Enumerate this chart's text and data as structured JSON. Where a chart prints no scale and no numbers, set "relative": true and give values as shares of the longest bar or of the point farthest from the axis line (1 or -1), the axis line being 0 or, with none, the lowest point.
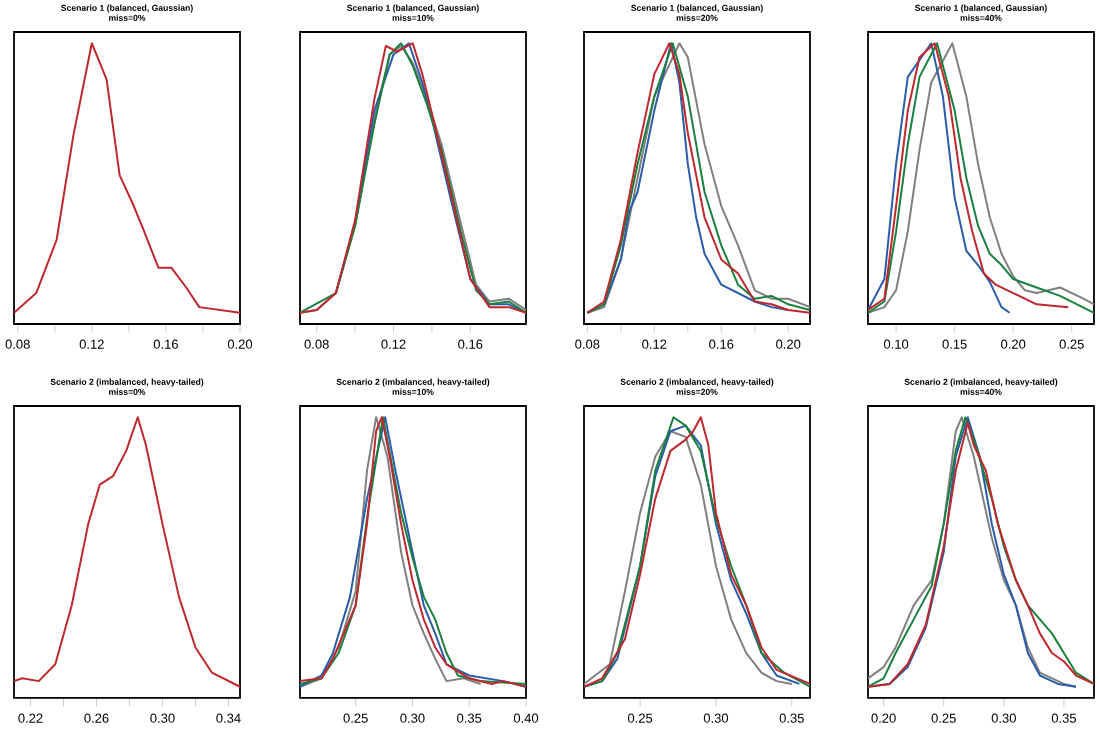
{
  "chart_data": [
    {
      "type": "line",
      "title": "Scenario 1 (balanced, Gaussian)",
      "subtitle": "miss=0%",
      "relative": true,
      "tick_labels": "x",
      "xlim": [
        0.078,
        0.2
      ],
      "xticks": [
        0.08,
        {
          "value": 0.1,
          "label": null
        },
        0.12,
        {
          "value": 0.14,
          "label": null
        },
        0.16,
        {
          "value": 0.18,
          "label": null
        },
        {
          "value": 0.2,
          "label": "0.20"
        }
      ],
      "series": [
        {
          "color": "#c0282d",
          "x": [
            0.078,
            0.09,
            0.101,
            0.11,
            0.12,
            0.128,
            0.135,
            0.142,
            0.147,
            0.156,
            0.163,
            0.171,
            0.178,
            0.2
          ],
          "values": [
            0.04,
            0.11,
            0.3,
            0.67,
            1,
            0.87,
            0.53,
            0.43,
            0.35,
            0.2,
            0.2,
            0.13,
            0.06,
            0.04
          ]
        }
      ]
    },
    {
      "type": "line",
      "title": "Scenario 1 (balanced, Gaussian)",
      "subtitle": "miss=10%",
      "relative": true,
      "tick_labels": "x",
      "xlim": [
        0.0713,
        0.189
      ],
      "xticks": [
        0.08,
        {
          "value": 0.1,
          "label": null
        },
        0.12,
        {
          "value": 0.14,
          "label": null
        },
        0.16
      ],
      "series": [
        {
          "color": "#808080",
          "x": [
            0.0713,
            0.08,
            0.09,
            0.1,
            0.11,
            0.118,
            0.124,
            0.13,
            0.137,
            0.145,
            0.155,
            0.163,
            0.17,
            0.18,
            0.189
          ],
          "values": [
            0.04,
            0.05,
            0.11,
            0.35,
            0.73,
            0.96,
            0.99,
            0.93,
            0.81,
            0.64,
            0.36,
            0.14,
            0.08,
            0.09,
            0.05
          ]
        },
        {
          "color": "#2a5caa",
          "x": [
            0.09,
            0.1,
            0.11,
            0.12,
            0.128,
            0.135,
            0.14,
            0.15,
            0.16,
            0.17,
            0.18,
            0.189
          ],
          "values": [
            0.11,
            0.36,
            0.76,
            0.96,
            1,
            0.86,
            0.73,
            0.44,
            0.16,
            0.07,
            0.07,
            0.04
          ]
        },
        {
          "color": "#1a8040",
          "x": [
            0.0713,
            0.09,
            0.1,
            0.11,
            0.118,
            0.124,
            0.13,
            0.137,
            0.145,
            0.155,
            0.163,
            0.17,
            0.18,
            0.189
          ],
          "values": [
            0.04,
            0.11,
            0.35,
            0.71,
            0.96,
            1,
            0.92,
            0.79,
            0.62,
            0.33,
            0.12,
            0.07,
            0.08,
            0.04
          ]
        },
        {
          "color": "#c0282d",
          "x": [
            0.0713,
            0.08,
            0.09,
            0.1,
            0.11,
            0.116,
            0.122,
            0.13,
            0.135,
            0.14,
            0.15,
            0.16,
            0.17,
            0.18,
            0.189
          ],
          "values": [
            0.04,
            0.05,
            0.11,
            0.37,
            0.8,
            0.99,
            0.97,
            1,
            0.89,
            0.75,
            0.46,
            0.16,
            0.06,
            0.06,
            0.04
          ]
        }
      ]
    },
    {
      "type": "line",
      "title": "Scenario 1 (balanced, Gaussian)",
      "subtitle": "miss=20%",
      "relative": true,
      "tick_labels": "x",
      "xlim": [
        0.078,
        0.213
      ],
      "xticks": [
        0.08,
        {
          "value": 0.1,
          "label": null
        },
        0.12,
        {
          "value": 0.14,
          "label": null
        },
        0.16,
        {
          "value": 0.18,
          "label": null
        },
        {
          "value": 0.2,
          "label": "0.20"
        }
      ],
      "series": [
        {
          "color": "#808080",
          "x": [
            0.08,
            0.09,
            0.1,
            0.11,
            0.12,
            0.135,
            0.14,
            0.15,
            0.16,
            0.17,
            0.18,
            0.19,
            0.2,
            0.213
          ],
          "values": [
            0.04,
            0.06,
            0.23,
            0.52,
            0.81,
            1,
            0.95,
            0.64,
            0.42,
            0.28,
            0.12,
            0.09,
            0.09,
            0.06
          ]
        },
        {
          "color": "#2a5caa",
          "x": [
            0.08,
            0.09,
            0.1,
            0.105,
            0.11,
            0.12,
            0.13,
            0.135,
            0.14,
            0.145,
            0.15,
            0.16,
            0.17,
            0.18,
            0.19,
            0.2
          ],
          "values": [
            0.04,
            0.07,
            0.23,
            0.4,
            0.47,
            0.76,
            1,
            0.86,
            0.57,
            0.38,
            0.25,
            0.14,
            0.11,
            0.08,
            0.06,
            0.05
          ]
        },
        {
          "color": "#1a8040",
          "x": [
            0.08,
            0.09,
            0.1,
            0.11,
            0.12,
            0.131,
            0.14,
            0.15,
            0.16,
            0.17,
            0.18,
            0.19,
            0.2,
            0.213
          ],
          "values": [
            0.04,
            0.07,
            0.28,
            0.57,
            0.81,
            1,
            0.81,
            0.47,
            0.28,
            0.14,
            0.09,
            0.1,
            0.07,
            0.05
          ]
        },
        {
          "color": "#c0282d",
          "x": [
            0.08,
            0.09,
            0.1,
            0.11,
            0.12,
            0.129,
            0.135,
            0.14,
            0.15,
            0.16,
            0.17,
            0.18,
            0.19,
            0.2,
            0.213
          ],
          "values": [
            0.04,
            0.08,
            0.3,
            0.61,
            0.89,
            1,
            0.89,
            0.68,
            0.38,
            0.23,
            0.18,
            0.08,
            0.07,
            0.05,
            0.04
          ]
        }
      ]
    },
    {
      "type": "line",
      "title": "Scenario 1 (balanced, Gaussian)",
      "subtitle": "miss=40%",
      "relative": true,
      "tick_labels": "x",
      "xlim": [
        0.076,
        0.269
      ],
      "xticks": [
        {
          "value": 0.1,
          "label": "0.10"
        },
        0.15,
        {
          "value": 0.2,
          "label": "0.20"
        },
        0.25
      ],
      "series": [
        {
          "color": "#808080",
          "x": [
            0.076,
            0.09,
            0.1,
            0.11,
            0.12,
            0.13,
            0.148,
            0.16,
            0.17,
            0.18,
            0.19,
            0.2,
            0.21,
            0.22,
            0.24,
            0.26,
            0.269
          ],
          "values": [
            0.04,
            0.06,
            0.12,
            0.33,
            0.62,
            0.86,
            1,
            0.81,
            0.57,
            0.38,
            0.25,
            0.17,
            0.12,
            0.11,
            0.13,
            0.09,
            0.07
          ]
        },
        {
          "color": "#2a5caa",
          "x": [
            0.076,
            0.09,
            0.1,
            0.11,
            0.13,
            0.14,
            0.15,
            0.16,
            0.17,
            0.18,
            0.19,
            0.197
          ],
          "values": [
            0.05,
            0.16,
            0.57,
            0.88,
            1,
            0.81,
            0.45,
            0.26,
            0.21,
            0.15,
            0.06,
            0.04
          ]
        },
        {
          "color": "#1a8040",
          "x": [
            0.076,
            0.09,
            0.1,
            0.11,
            0.12,
            0.135,
            0.15,
            0.16,
            0.17,
            0.18,
            0.19,
            0.2,
            0.22,
            0.24,
            0.269
          ],
          "values": [
            0.04,
            0.08,
            0.33,
            0.64,
            0.88,
            1,
            0.76,
            0.52,
            0.35,
            0.25,
            0.21,
            0.16,
            0.13,
            0.1,
            0.04
          ]
        },
        {
          "color": "#c0282d",
          "x": [
            0.076,
            0.09,
            0.1,
            0.11,
            0.12,
            0.133,
            0.145,
            0.155,
            0.165,
            0.175,
            0.185,
            0.2,
            0.22,
            0.247
          ],
          "values": [
            0.05,
            0.09,
            0.42,
            0.76,
            0.95,
            1,
            0.81,
            0.52,
            0.33,
            0.18,
            0.14,
            0.11,
            0.07,
            0.06
          ]
        }
      ]
    },
    {
      "type": "line",
      "title": "Scenario 2 (imbalanced, heavy-tailed)",
      "subtitle": "miss=0%",
      "relative": true,
      "tick_labels": "x",
      "xlim": [
        0.21,
        0.347
      ],
      "xticks": [
        0.22,
        {
          "value": 0.24,
          "label": null
        },
        0.26,
        {
          "value": 0.28,
          "label": null
        },
        {
          "value": 0.3,
          "label": "0.30"
        },
        {
          "value": 0.32,
          "label": null
        },
        0.34
      ],
      "series": [
        {
          "color": "#c0282d",
          "x": [
            0.21,
            0.215,
            0.225,
            0.235,
            0.245,
            0.255,
            0.262,
            0.27,
            0.278,
            0.285,
            0.29,
            0.3,
            0.31,
            0.32,
            0.33,
            0.347
          ],
          "values": [
            0.06,
            0.07,
            0.06,
            0.12,
            0.33,
            0.62,
            0.76,
            0.79,
            0.88,
            1,
            0.9,
            0.62,
            0.36,
            0.18,
            0.09,
            0.04
          ]
        }
      ]
    },
    {
      "type": "line",
      "title": "Scenario 2 (imbalanced, heavy-tailed)",
      "subtitle": "miss=10%",
      "relative": true,
      "tick_labels": "x",
      "xlim": [
        0.201,
        0.4
      ],
      "xticks": [
        0.25,
        {
          "value": 0.3,
          "label": "0.30"
        },
        0.35,
        {
          "value": 0.4,
          "label": "0.40"
        }
      ],
      "series": [
        {
          "color": "#808080",
          "x": [
            0.201,
            0.22,
            0.235,
            0.25,
            0.26,
            0.268,
            0.278,
            0.29,
            0.3,
            0.31,
            0.32,
            0.33,
            0.345,
            0.36
          ],
          "values": [
            0.04,
            0.07,
            0.18,
            0.38,
            0.81,
            1,
            0.86,
            0.52,
            0.33,
            0.23,
            0.14,
            0.06,
            0.07,
            0.05
          ]
        },
        {
          "color": "#2a5caa",
          "x": [
            0.201,
            0.22,
            0.23,
            0.245,
            0.26,
            0.276,
            0.285,
            0.3,
            0.31,
            0.32,
            0.33,
            0.35,
            0.38,
            0.4
          ],
          "values": [
            0.04,
            0.08,
            0.16,
            0.36,
            0.71,
            1,
            0.81,
            0.52,
            0.33,
            0.23,
            0.12,
            0.08,
            0.06,
            0.04
          ]
        },
        {
          "color": "#1a8040",
          "x": [
            0.201,
            0.22,
            0.235,
            0.25,
            0.26,
            0.274,
            0.29,
            0.3,
            0.31,
            0.32,
            0.33,
            0.34,
            0.36,
            0.4
          ],
          "values": [
            0.05,
            0.07,
            0.16,
            0.33,
            0.64,
            1,
            0.66,
            0.5,
            0.36,
            0.28,
            0.16,
            0.08,
            0.06,
            0.05
          ]
        },
        {
          "color": "#c0282d",
          "x": [
            0.201,
            0.22,
            0.23,
            0.25,
            0.26,
            0.268,
            0.273,
            0.28,
            0.29,
            0.3,
            0.31,
            0.32,
            0.33,
            0.35,
            0.37,
            0.38,
            0.4
          ],
          "values": [
            0.06,
            0.07,
            0.14,
            0.33,
            0.62,
            0.95,
            1,
            0.86,
            0.62,
            0.42,
            0.28,
            0.18,
            0.12,
            0.07,
            0.05,
            0.06,
            0.04
          ]
        }
      ]
    },
    {
      "type": "line",
      "title": "Scenario 2 (imbalanced, heavy-tailed)",
      "subtitle": "miss=20%",
      "relative": true,
      "tick_labels": "x",
      "xlim": [
        0.213,
        0.362
      ],
      "xticks": [
        0.25,
        {
          "value": 0.3,
          "label": "0.30"
        },
        0.35
      ],
      "series": [
        {
          "color": "#808080",
          "x": [
            0.213,
            0.23,
            0.24,
            0.25,
            0.26,
            0.27,
            0.28,
            0.29,
            0.3,
            0.31,
            0.32,
            0.33,
            0.34,
            0.35
          ],
          "values": [
            0.05,
            0.12,
            0.38,
            0.66,
            0.86,
            0.95,
            0.93,
            0.76,
            0.47,
            0.28,
            0.16,
            0.09,
            0.06,
            0.05
          ]
        },
        {
          "color": "#2a5caa",
          "x": [
            0.213,
            0.225,
            0.235,
            0.25,
            0.26,
            0.27,
            0.28,
            0.29,
            0.3,
            0.31,
            0.32,
            0.33,
            0.34,
            0.355
          ],
          "values": [
            0.04,
            0.06,
            0.14,
            0.47,
            0.79,
            0.95,
            0.97,
            0.9,
            0.62,
            0.42,
            0.3,
            0.16,
            0.08,
            0.05
          ]
        },
        {
          "color": "#1a8040",
          "x": [
            0.213,
            0.225,
            0.235,
            0.25,
            0.26,
            0.272,
            0.28,
            0.29,
            0.3,
            0.31,
            0.32,
            0.33,
            0.345,
            0.362
          ],
          "values": [
            0.04,
            0.06,
            0.16,
            0.47,
            0.81,
            1,
            0.97,
            0.88,
            0.64,
            0.47,
            0.33,
            0.16,
            0.09,
            0.04
          ]
        },
        {
          "color": "#c0282d",
          "x": [
            0.213,
            0.225,
            0.24,
            0.25,
            0.26,
            0.27,
            0.28,
            0.285,
            0.29,
            0.295,
            0.3,
            0.31,
            0.32,
            0.33,
            0.34,
            0.362
          ],
          "values": [
            0.04,
            0.07,
            0.21,
            0.44,
            0.71,
            0.88,
            0.92,
            0.95,
            1,
            0.9,
            0.66,
            0.44,
            0.33,
            0.18,
            0.1,
            0.05
          ]
        }
      ]
    },
    {
      "type": "line",
      "title": "Scenario 2 (imbalanced, heavy-tailed)",
      "subtitle": "miss=40%",
      "relative": true,
      "tick_labels": "x",
      "xlim": [
        0.187,
        0.375
      ],
      "xticks": [
        {
          "value": 0.2,
          "label": "0.20"
        },
        0.25,
        {
          "value": 0.3,
          "label": "0.30"
        },
        0.35
      ],
      "series": [
        {
          "color": "#808080",
          "x": [
            0.187,
            0.2,
            0.21,
            0.225,
            0.24,
            0.25,
            0.26,
            0.265,
            0.275,
            0.29,
            0.3,
            0.31,
            0.32,
            0.33,
            0.35,
            0.36
          ],
          "values": [
            0.07,
            0.11,
            0.18,
            0.33,
            0.42,
            0.62,
            0.95,
            1,
            0.86,
            0.57,
            0.42,
            0.33,
            0.18,
            0.09,
            0.05,
            0.04
          ]
        },
        {
          "color": "#2a5caa",
          "x": [
            0.187,
            0.205,
            0.22,
            0.235,
            0.25,
            0.26,
            0.27,
            0.28,
            0.29,
            0.3,
            0.31,
            0.32,
            0.33,
            0.345,
            0.36
          ],
          "values": [
            0.04,
            0.05,
            0.11,
            0.25,
            0.52,
            0.86,
            1,
            0.86,
            0.62,
            0.44,
            0.33,
            0.16,
            0.08,
            0.05,
            0.04
          ]
        },
        {
          "color": "#1a8040",
          "x": [
            0.187,
            0.2,
            0.21,
            0.225,
            0.24,
            0.25,
            0.26,
            0.268,
            0.275,
            0.29,
            0.3,
            0.31,
            0.32,
            0.33,
            0.34,
            0.35,
            0.36,
            0.375
          ],
          "values": [
            0.04,
            0.07,
            0.16,
            0.28,
            0.4,
            0.62,
            0.88,
            1,
            0.92,
            0.71,
            0.54,
            0.42,
            0.33,
            0.28,
            0.23,
            0.16,
            0.09,
            0.05
          ]
        },
        {
          "color": "#c0282d",
          "x": [
            0.187,
            0.205,
            0.22,
            0.235,
            0.25,
            0.26,
            0.27,
            0.275,
            0.285,
            0.295,
            0.31,
            0.32,
            0.33,
            0.34,
            0.35,
            0.36,
            0.375
          ],
          "values": [
            0.04,
            0.05,
            0.12,
            0.26,
            0.54,
            0.81,
            0.98,
            0.9,
            0.81,
            0.62,
            0.42,
            0.33,
            0.23,
            0.16,
            0.13,
            0.08,
            0.05
          ]
        }
      ]
    }
  ]
}
